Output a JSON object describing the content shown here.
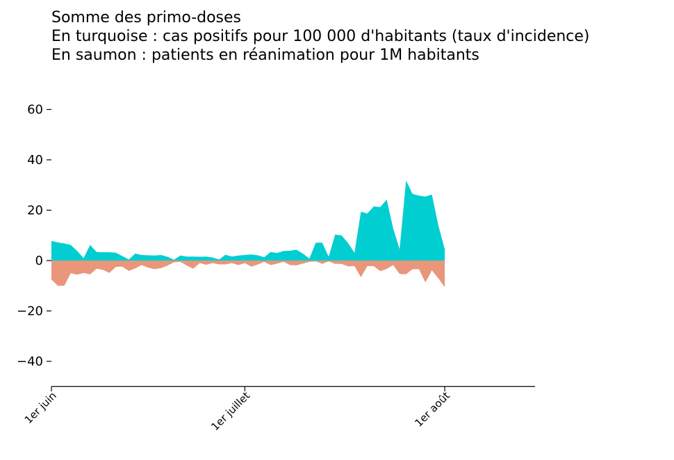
{
  "chart_data": {
    "type": "area",
    "title_lines": [
      "Somme des primo-doses",
      "En turquoise : cas positifs pour 100 000 d'habitants (taux d'incidence)",
      "En saumon : patients en réanimation pour 1M habitants"
    ],
    "x_tick_labels": [
      "1er juin",
      "1er juillet",
      "1er août"
    ],
    "x_tick_days": [
      0,
      30,
      61
    ],
    "xlim_days": [
      0,
      75
    ],
    "ylim": [
      -50,
      70
    ],
    "y_ticks": [
      -40,
      -20,
      0,
      20,
      40,
      60
    ],
    "y_tick_labels": [
      "−40",
      "−20",
      "0",
      "20",
      "40",
      "60"
    ],
    "colors": {
      "positive": "#00ced1",
      "negative": "#e9967a"
    },
    "series": [
      {
        "color": "#00ced1",
        "values": [
          7.8,
          7.2,
          6.8,
          6.2,
          3.8,
          1.0,
          6.2,
          3.4,
          3.3,
          3.3,
          3.1,
          1.8,
          0.4,
          2.8,
          2.2,
          2.1,
          2.0,
          2.2,
          1.5,
          0.3,
          2.0,
          1.6,
          1.6,
          1.5,
          1.6,
          1.2,
          0.4,
          2.3,
          1.6,
          2.0,
          2.2,
          2.4,
          2.1,
          1.3,
          3.4,
          3.0,
          3.8,
          3.9,
          4.3,
          2.8,
          0.8,
          7.1,
          7.1,
          1.5,
          10.3,
          10.0,
          7.0,
          3.1,
          19.4,
          18.7,
          21.5,
          21.2,
          24.2,
          12.8,
          4.5,
          31.8,
          26.5,
          25.8,
          25.4,
          26.2,
          14.0,
          4.5
        ]
      },
      {
        "color": "#e9967a",
        "values": [
          -7.5,
          -10.0,
          -10.0,
          -5.0,
          -5.6,
          -4.9,
          -5.5,
          -3.2,
          -3.7,
          -4.9,
          -2.5,
          -2.4,
          -4.1,
          -3.1,
          -1.8,
          -2.8,
          -3.4,
          -3.0,
          -2.0,
          -0.7,
          -0.5,
          -2.0,
          -3.2,
          -1.0,
          -1.7,
          -1.0,
          -1.5,
          -1.5,
          -1.0,
          -1.8,
          -1.0,
          -2.4,
          -1.6,
          -0.5,
          -1.8,
          -1.2,
          -0.5,
          -1.8,
          -1.9,
          -1.2,
          -0.5,
          -0.3,
          -1.3,
          -0.3,
          -1.3,
          -1.3,
          -2.3,
          -2.2,
          -6.6,
          -2.2,
          -2.2,
          -4.2,
          -3.3,
          -1.8,
          -5.3,
          -5.4,
          -3.4,
          -3.4,
          -8.7,
          -3.9,
          -7.0,
          -10.6
        ]
      }
    ]
  }
}
